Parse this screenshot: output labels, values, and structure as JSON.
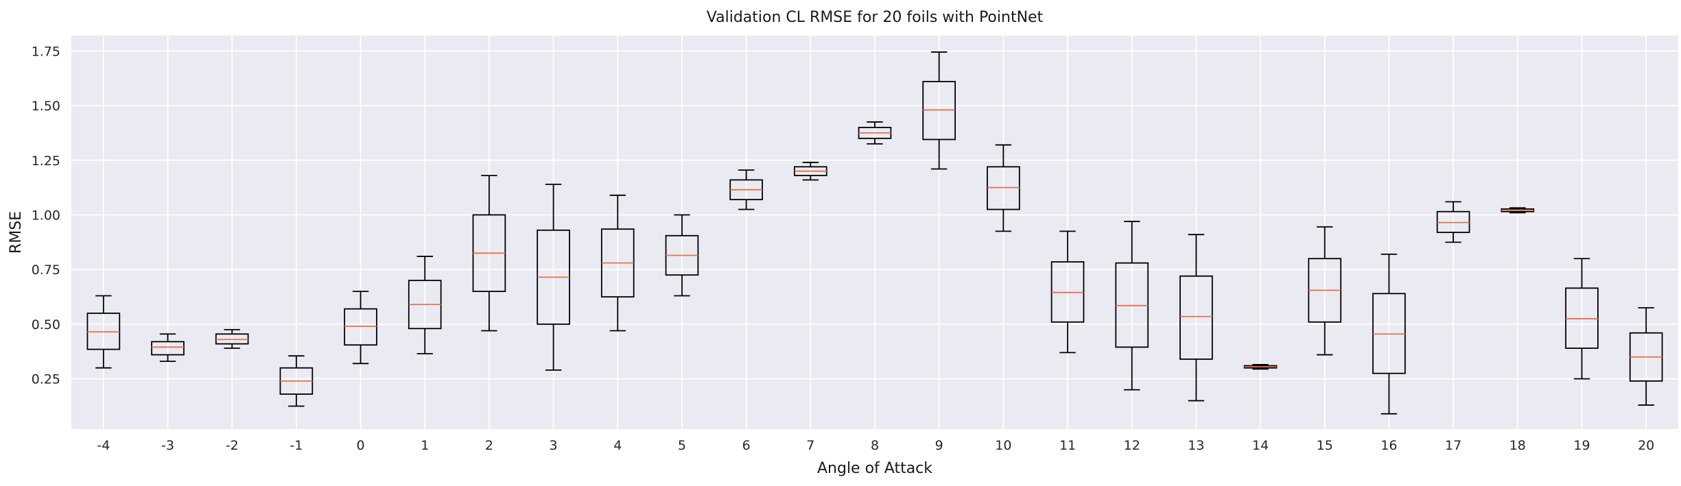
{
  "chart_data": {
    "type": "box",
    "title": "Validation CL RMSE for 20 foils with PointNet",
    "xlabel": "Angle of Attack",
    "ylabel": "RMSE",
    "ylim": [
      0.02,
      1.82
    ],
    "yticks": [
      0.25,
      0.5,
      0.75,
      1.0,
      1.25,
      1.5,
      1.75
    ],
    "ytick_labels": [
      "0.25",
      "0.50",
      "0.75",
      "1.00",
      "1.25",
      "1.50",
      "1.75"
    ],
    "grid": true,
    "colors": {
      "background": "#eaeaf2",
      "grid": "#ffffff",
      "box": "#000000",
      "median": "#e3734b"
    },
    "categories": [
      "-4",
      "-3",
      "-2",
      "-1",
      "0",
      "1",
      "2",
      "3",
      "4",
      "5",
      "6",
      "7",
      "8",
      "9",
      "10",
      "11",
      "12",
      "13",
      "14",
      "15",
      "16",
      "17",
      "18",
      "19",
      "20"
    ],
    "boxes": [
      {
        "whislo": 0.3,
        "q1": 0.385,
        "med": 0.465,
        "q3": 0.55,
        "whishi": 0.63
      },
      {
        "whislo": 0.33,
        "q1": 0.36,
        "med": 0.395,
        "q3": 0.42,
        "whishi": 0.455
      },
      {
        "whislo": 0.39,
        "q1": 0.41,
        "med": 0.43,
        "q3": 0.455,
        "whishi": 0.475
      },
      {
        "whislo": 0.125,
        "q1": 0.18,
        "med": 0.24,
        "q3": 0.3,
        "whishi": 0.355
      },
      {
        "whislo": 0.32,
        "q1": 0.405,
        "med": 0.49,
        "q3": 0.57,
        "whishi": 0.65
      },
      {
        "whislo": 0.365,
        "q1": 0.48,
        "med": 0.59,
        "q3": 0.7,
        "whishi": 0.81
      },
      {
        "whislo": 0.47,
        "q1": 0.65,
        "med": 0.825,
        "q3": 1.0,
        "whishi": 1.18
      },
      {
        "whislo": 0.29,
        "q1": 0.5,
        "med": 0.715,
        "q3": 0.93,
        "whishi": 1.14
      },
      {
        "whislo": 0.47,
        "q1": 0.625,
        "med": 0.78,
        "q3": 0.935,
        "whishi": 1.09
      },
      {
        "whislo": 0.63,
        "q1": 0.725,
        "med": 0.815,
        "q3": 0.905,
        "whishi": 1.0
      },
      {
        "whislo": 1.025,
        "q1": 1.07,
        "med": 1.115,
        "q3": 1.16,
        "whishi": 1.205
      },
      {
        "whislo": 1.16,
        "q1": 1.18,
        "med": 1.2,
        "q3": 1.22,
        "whishi": 1.24
      },
      {
        "whislo": 1.325,
        "q1": 1.35,
        "med": 1.375,
        "q3": 1.4,
        "whishi": 1.425
      },
      {
        "whislo": 1.21,
        "q1": 1.345,
        "med": 1.48,
        "q3": 1.61,
        "whishi": 1.745
      },
      {
        "whislo": 0.925,
        "q1": 1.025,
        "med": 1.125,
        "q3": 1.22,
        "whishi": 1.32
      },
      {
        "whislo": 0.37,
        "q1": 0.51,
        "med": 0.645,
        "q3": 0.785,
        "whishi": 0.925
      },
      {
        "whislo": 0.2,
        "q1": 0.395,
        "med": 0.585,
        "q3": 0.78,
        "whishi": 0.97
      },
      {
        "whislo": 0.15,
        "q1": 0.34,
        "med": 0.535,
        "q3": 0.72,
        "whishi": 0.91
      },
      {
        "whislo": 0.295,
        "q1": 0.3,
        "med": 0.305,
        "q3": 0.31,
        "whishi": 0.315
      },
      {
        "whislo": 0.36,
        "q1": 0.51,
        "med": 0.655,
        "q3": 0.8,
        "whishi": 0.945
      },
      {
        "whislo": 0.09,
        "q1": 0.275,
        "med": 0.455,
        "q3": 0.64,
        "whishi": 0.82
      },
      {
        "whislo": 0.875,
        "q1": 0.92,
        "med": 0.965,
        "q3": 1.015,
        "whishi": 1.06
      },
      {
        "whislo": 1.01,
        "q1": 1.015,
        "med": 1.02,
        "q3": 1.027,
        "whishi": 1.032
      },
      {
        "whislo": 0.25,
        "q1": 0.39,
        "med": 0.525,
        "q3": 0.665,
        "whishi": 0.8
      },
      {
        "whislo": 0.13,
        "q1": 0.24,
        "med": 0.35,
        "q3": 0.46,
        "whishi": 0.575
      }
    ]
  }
}
